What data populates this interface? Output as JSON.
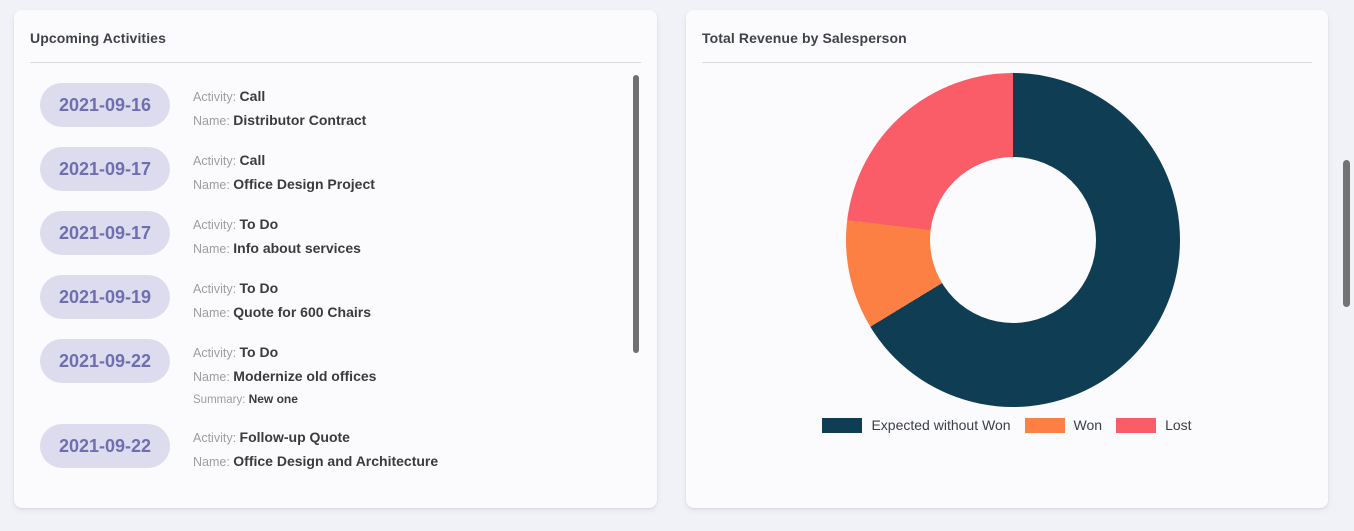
{
  "page": {
    "background": "#f1f2f8"
  },
  "activities_card": {
    "title": "Upcoming Activities",
    "items": [
      {
        "date": "2021-09-16",
        "fields": [
          {
            "label": "Activity:",
            "value": "Call"
          },
          {
            "label": "Name:",
            "value": "Distributor Contract"
          }
        ]
      },
      {
        "date": "2021-09-17",
        "fields": [
          {
            "label": "Activity:",
            "value": "Call"
          },
          {
            "label": "Name:",
            "value": "Office Design Project"
          }
        ]
      },
      {
        "date": "2021-09-17",
        "fields": [
          {
            "label": "Activity:",
            "value": "To Do"
          },
          {
            "label": "Name:",
            "value": "Info about services"
          }
        ]
      },
      {
        "date": "2021-09-19",
        "fields": [
          {
            "label": "Activity:",
            "value": "To Do"
          },
          {
            "label": "Name:",
            "value": "Quote for 600 Chairs"
          }
        ]
      },
      {
        "date": "2021-09-22",
        "fields": [
          {
            "label": "Activity:",
            "value": "To Do"
          },
          {
            "label": "Name:",
            "value": "Modernize old offices"
          },
          {
            "label": "Summary:",
            "value": "New one",
            "small": true
          }
        ]
      },
      {
        "date": "2021-09-22",
        "fields": [
          {
            "label": "Activity:",
            "value": "Follow-up Quote"
          },
          {
            "label": "Name:",
            "value": "Office Design and Architecture"
          }
        ]
      }
    ],
    "badge_bg": "#dddcee",
    "badge_text_color": "#6e6eb1"
  },
  "revenue_card": {
    "title": "Total Revenue by Salesperson"
  },
  "chart_data": {
    "type": "pie",
    "donut": true,
    "title": "Total Revenue by Salesperson",
    "labels": [
      "Expected without Won",
      "Won",
      "Lost"
    ],
    "values": [
      66.3,
      10.6,
      23.1
    ],
    "unit": "percent of circle",
    "colors": [
      "#0e3d54",
      "#fc7f44",
      "#fa5c68"
    ],
    "start_angle_deg": 0,
    "direction": "clockwise",
    "legend_position": "bottom",
    "hole_ratio": 0.5
  }
}
